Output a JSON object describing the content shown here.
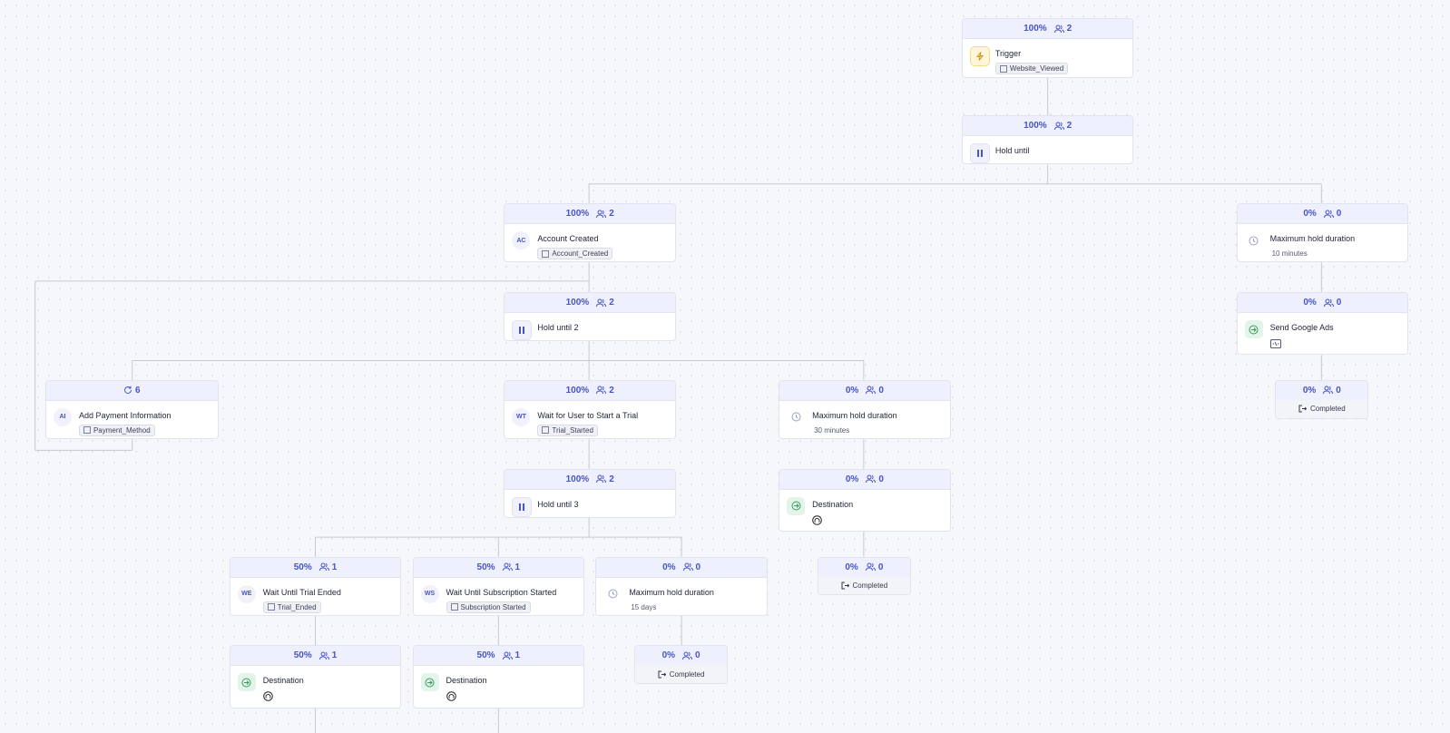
{
  "nodes": [
    {
      "header": {
        "percent": "100%",
        "count": 2
      },
      "title": "Trigger",
      "tag": "Website_Viewed"
    },
    {
      "header": {
        "percent": "100%",
        "count": 2
      },
      "title": "Hold until"
    },
    {
      "header": {
        "percent": "100%",
        "count": 2
      },
      "badge": "AC",
      "title": "Account Created",
      "tag": "Account_Created"
    },
    {
      "header": {
        "percent": "0%",
        "count": 0
      },
      "title": "Maximum hold duration",
      "subtitle": "10 minutes"
    },
    {
      "header": {
        "percent": "100%",
        "count": 2
      },
      "title": "Hold until 2"
    },
    {
      "header": {
        "percent": "0%",
        "count": 0
      },
      "title": "Send Google Ads"
    },
    {
      "header": {
        "count": 6
      },
      "badge": "AI",
      "title": "Add Payment Information",
      "tag": "Payment_Method"
    },
    {
      "header": {
        "percent": "100%",
        "count": 2
      },
      "badge": "WT",
      "title": "Wait for User to Start a Trial",
      "tag": "Trial_Started"
    },
    {
      "header": {
        "percent": "0%",
        "count": 0
      },
      "title": "Maximum hold duration",
      "subtitle": "30 minutes"
    },
    {
      "header": {
        "percent": "0%",
        "count": 0
      },
      "title": "Completed"
    },
    {
      "header": {
        "percent": "100%",
        "count": 2
      },
      "title": "Hold until 3"
    },
    {
      "header": {
        "percent": "0%",
        "count": 0
      },
      "title": "Destination"
    },
    {
      "header": {
        "percent": "50%",
        "count": 1
      },
      "badge": "WE",
      "title": "Wait Until Trial Ended",
      "tag": "Trial_Ended"
    },
    {
      "header": {
        "percent": "50%",
        "count": 1
      },
      "badge": "WS",
      "title": "Wait Until Subscription Started",
      "tag": "Subscription Started"
    },
    {
      "header": {
        "percent": "0%",
        "count": 0
      },
      "title": "Maximum hold duration",
      "subtitle": "15 days"
    },
    {
      "header": {
        "percent": "0%",
        "count": 0
      },
      "title": "Completed"
    },
    {
      "header": {
        "percent": "50%",
        "count": 1
      },
      "title": "Destination"
    },
    {
      "header": {
        "percent": "50%",
        "count": 1
      },
      "title": "Destination"
    },
    {
      "header": {
        "percent": "0%",
        "count": 0
      },
      "title": "Completed"
    }
  ]
}
